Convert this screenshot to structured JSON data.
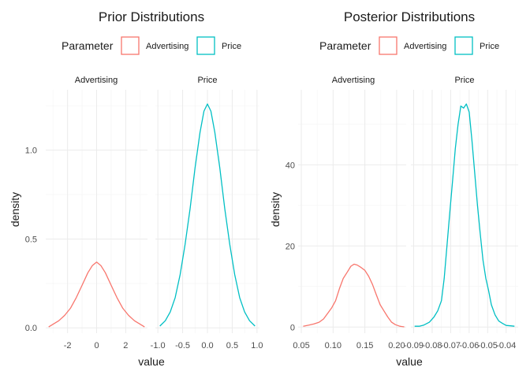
{
  "colors": {
    "advertising": "#F8766D",
    "price": "#00BFC4"
  },
  "chart_data": [
    {
      "type": "line",
      "title": "Prior Distributions",
      "legend": {
        "title": "Parameter",
        "entries": [
          "Advertising",
          "Price"
        ],
        "placement": "top"
      },
      "xlabel": "value",
      "ylabel": "density",
      "ylim": [
        -0.03,
        1.34
      ],
      "yticks": [
        0.0,
        0.5,
        1.0
      ],
      "ytick_labels": [
        "0.0",
        "0.5",
        "1.0"
      ],
      "panels": [
        {
          "strip": "Advertising",
          "series": "Advertising",
          "xlim": [
            -3.5,
            3.5
          ],
          "xticks": [
            -2,
            0,
            2
          ],
          "xtick_labels": [
            "-2",
            "0",
            "2"
          ],
          "x": [
            -3.3,
            -3.0,
            -2.6,
            -2.2,
            -1.8,
            -1.4,
            -1.0,
            -0.6,
            -0.3,
            0.0,
            0.3,
            0.6,
            1.0,
            1.4,
            1.8,
            2.2,
            2.6,
            3.0,
            3.3
          ],
          "y": [
            0.005,
            0.02,
            0.04,
            0.07,
            0.11,
            0.17,
            0.24,
            0.31,
            0.35,
            0.37,
            0.35,
            0.31,
            0.24,
            0.17,
            0.11,
            0.07,
            0.04,
            0.02,
            0.005
          ]
        },
        {
          "strip": "Price",
          "series": "Price",
          "xlim": [
            -1.05,
            1.05
          ],
          "xticks": [
            -1.0,
            -0.5,
            0.0,
            0.5,
            1.0
          ],
          "xtick_labels": [
            "-1.0",
            "-0.5",
            "0.0",
            "0.5",
            "1.0"
          ],
          "x": [
            -0.96,
            -0.85,
            -0.75,
            -0.65,
            -0.55,
            -0.45,
            -0.35,
            -0.25,
            -0.15,
            -0.07,
            0.0,
            0.07,
            0.15,
            0.25,
            0.35,
            0.45,
            0.55,
            0.65,
            0.75,
            0.85,
            0.96
          ],
          "y": [
            0.01,
            0.04,
            0.09,
            0.17,
            0.3,
            0.47,
            0.67,
            0.9,
            1.1,
            1.22,
            1.26,
            1.22,
            1.1,
            0.9,
            0.67,
            0.47,
            0.3,
            0.17,
            0.09,
            0.04,
            0.01
          ]
        }
      ]
    },
    {
      "type": "line",
      "title": "Posterior Distributions",
      "legend": {
        "title": "Parameter",
        "entries": [
          "Advertising",
          "Price"
        ],
        "placement": "top"
      },
      "xlabel": "value",
      "ylabel": "density",
      "ylim": [
        -1.5,
        58.5
      ],
      "yticks": [
        0,
        20,
        40
      ],
      "ytick_labels": [
        "0",
        "20",
        "40"
      ],
      "panels": [
        {
          "strip": "Advertising",
          "series": "Advertising",
          "xlim": [
            0.045,
            0.215
          ],
          "xticks": [
            0.05,
            0.1,
            0.15,
            0.2
          ],
          "xtick_labels": [
            "0.05",
            "0.10",
            "0.15",
            "0.20"
          ],
          "x": [
            0.053,
            0.062,
            0.07,
            0.078,
            0.085,
            0.092,
            0.098,
            0.104,
            0.11,
            0.116,
            0.122,
            0.128,
            0.133,
            0.138,
            0.144,
            0.15,
            0.156,
            0.162,
            0.168,
            0.174,
            0.18,
            0.186,
            0.192,
            0.198,
            0.205,
            0.212
          ],
          "y": [
            0.2,
            0.5,
            0.8,
            1.2,
            2.0,
            3.5,
            4.8,
            6.5,
            9.5,
            12.0,
            13.5,
            15.0,
            15.5,
            15.3,
            14.7,
            14.0,
            12.5,
            10.5,
            8.0,
            5.5,
            4.0,
            2.5,
            1.2,
            0.6,
            0.2,
            0.05
          ]
        },
        {
          "strip": "Price",
          "series": "Price",
          "xlim": [
            -0.0915,
            -0.0335
          ],
          "xticks": [
            -0.09,
            -0.08,
            -0.07,
            -0.06,
            -0.05,
            -0.04
          ],
          "xtick_labels": [
            "-0.09",
            "-0.08",
            "-0.07",
            "-0.06",
            "-0.05",
            "-0.04"
          ],
          "x": [
            -0.0895,
            -0.087,
            -0.0845,
            -0.0815,
            -0.079,
            -0.077,
            -0.075,
            -0.0735,
            -0.072,
            -0.0705,
            -0.069,
            -0.0675,
            -0.066,
            -0.0645,
            -0.063,
            -0.0615,
            -0.06,
            -0.0585,
            -0.057,
            -0.0555,
            -0.054,
            -0.0525,
            -0.051,
            -0.0495,
            -0.048,
            -0.046,
            -0.044,
            -0.042,
            -0.04,
            -0.0375,
            -0.0355
          ],
          "y": [
            0.2,
            0.2,
            0.5,
            1.2,
            2.5,
            4.0,
            6.5,
            12.0,
            20.0,
            28.0,
            36.0,
            44.0,
            50.0,
            54.5,
            54.0,
            55.0,
            53.0,
            46.0,
            38.0,
            30.0,
            23.0,
            16.5,
            12.0,
            9.0,
            5.5,
            3.0,
            1.5,
            0.9,
            0.4,
            0.3,
            0.2
          ]
        }
      ]
    }
  ]
}
